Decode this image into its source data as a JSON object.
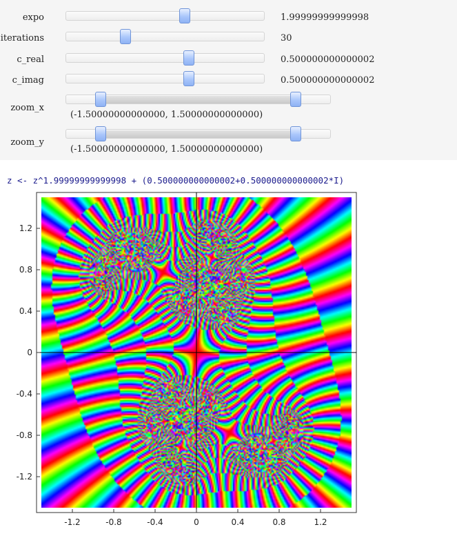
{
  "sliders": [
    {
      "id": "expo",
      "label": "expo",
      "value": "1.99999999999998",
      "fraction": 0.6
    },
    {
      "id": "iterations",
      "label": "iterations",
      "value": "30",
      "fraction": 0.3
    },
    {
      "id": "c_real",
      "label": "c_real",
      "value": "0.500000000000002",
      "fraction": 0.62
    },
    {
      "id": "c_imag",
      "label": "c_imag",
      "value": "0.500000000000002",
      "fraction": 0.62
    }
  ],
  "range_sliders": [
    {
      "id": "zoom_x",
      "label": "zoom_x",
      "value": "(-1.50000000000000, 1.50000000000000)",
      "low_fraction": 0.13,
      "high_fraction": 0.87
    },
    {
      "id": "zoom_y",
      "label": "zoom_y",
      "value": "(-1.50000000000000, 1.50000000000000)",
      "low_fraction": 0.13,
      "high_fraction": 0.87
    }
  ],
  "formula": "z <- z^1.99999999999998 + (0.500000000000002+0.500000000000002*I)",
  "chart_data": {
    "type": "heatmap",
    "description_kind": "complex-plot",
    "x_range": [
      -1.5,
      1.5
    ],
    "y_range": [
      -1.5,
      1.5
    ],
    "x_ticks": [
      "-1.2",
      "-0.8",
      "-0.4",
      "0",
      "0.4",
      "0.8",
      "1.2"
    ],
    "x_tick_values": [
      -1.2,
      -0.8,
      -0.4,
      0,
      0.4,
      0.8,
      1.2
    ],
    "y_ticks": [
      "1.2",
      "0.8",
      "0.4",
      "0",
      "-0.4",
      "-0.8",
      "-1.2"
    ],
    "y_tick_values": [
      1.2,
      0.8,
      0.4,
      0,
      -0.4,
      -0.8,
      -1.2
    ],
    "exponent": 1.99999999999998,
    "iterations": 30,
    "c": [
      0.5,
      0.5
    ],
    "grid": false
  }
}
